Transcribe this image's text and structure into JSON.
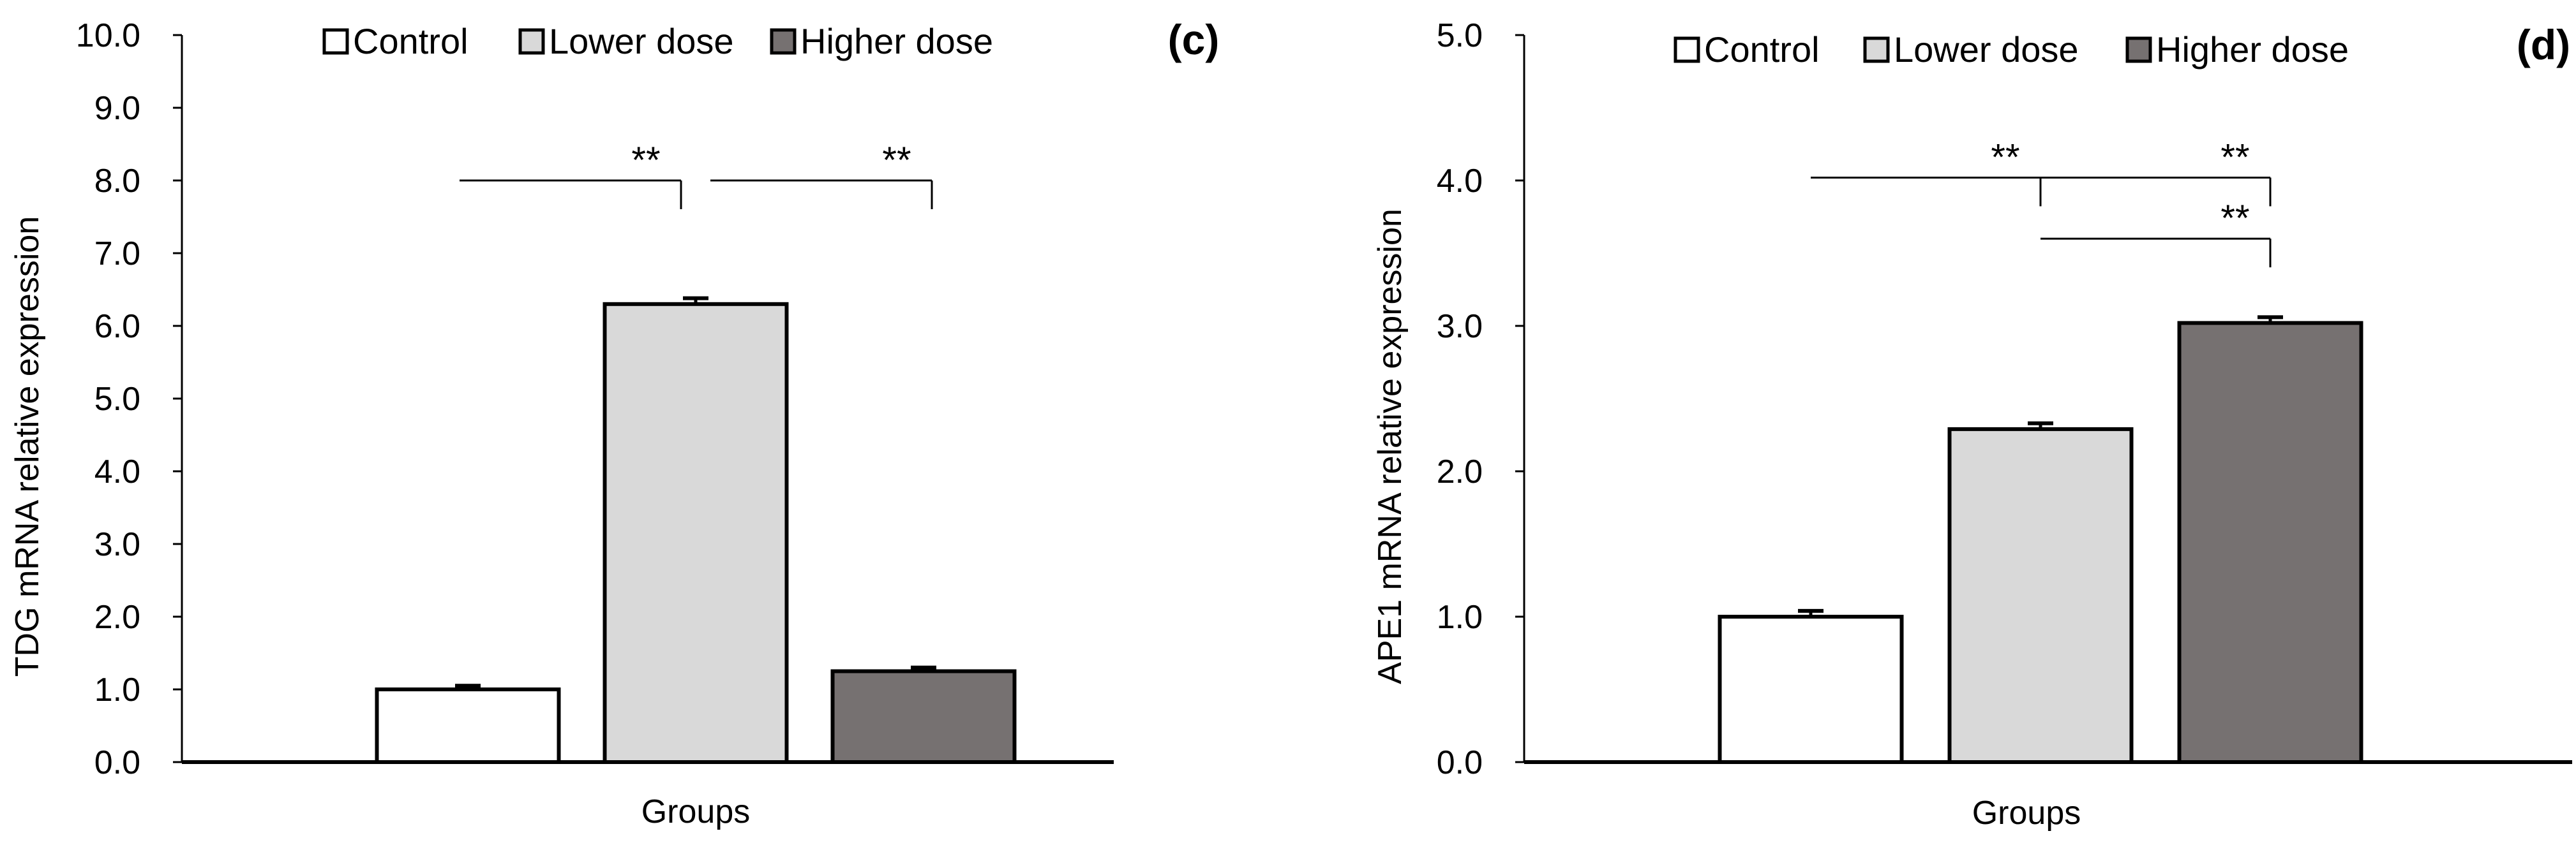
{
  "legend": [
    "Control",
    "Lower dose",
    "Higher dose"
  ],
  "colors": {
    "control": "#ffffff",
    "lower_dose": "#d9d9d9",
    "higher_dose": "#767171",
    "stroke": "#000000"
  },
  "chart_data": [
    {
      "type": "bar",
      "panel_label": "(c)",
      "title": "",
      "xlabel": "Groups",
      "ylabel": "TDG mRNA relative expression",
      "ylim": [
        0,
        10
      ],
      "ytick_step": 1,
      "yticks": [
        "0.0",
        "1.0",
        "2.0",
        "3.0",
        "4.0",
        "5.0",
        "6.0",
        "7.0",
        "8.0",
        "9.0",
        "10.0"
      ],
      "categories": [
        "Control",
        "Lower dose",
        "Higher dose"
      ],
      "values": [
        1.0,
        6.3,
        1.25
      ],
      "errors": [
        0.05,
        0.08,
        0.05
      ],
      "legend_position": "top-center",
      "significance": [
        {
          "from": 0,
          "to": 1,
          "level": 8.0,
          "label": "**"
        },
        {
          "from": 1,
          "to": 2,
          "level": 8.0,
          "label": "**"
        }
      ]
    },
    {
      "type": "bar",
      "panel_label": "(d)",
      "title": "",
      "xlabel": "Groups",
      "ylabel": "APE1 mRNA relative expression",
      "ylim": [
        0,
        5
      ],
      "ytick_step": 1,
      "yticks": [
        "0.0",
        "1.0",
        "2.0",
        "3.0",
        "4.0",
        "5.0"
      ],
      "categories": [
        "Control",
        "Lower dose",
        "Higher dose"
      ],
      "values": [
        1.0,
        2.29,
        3.02
      ],
      "errors": [
        0.04,
        0.04,
        0.04
      ],
      "legend_position": "top-center",
      "significance": [
        {
          "from": 0,
          "to": 2,
          "level": 4.02,
          "label": "**"
        },
        {
          "from": 0,
          "to": 1,
          "level": 4.02,
          "label": "**",
          "left_tick": false
        },
        {
          "from": 1,
          "to": 2,
          "level": 3.6,
          "label": "**"
        }
      ]
    }
  ]
}
